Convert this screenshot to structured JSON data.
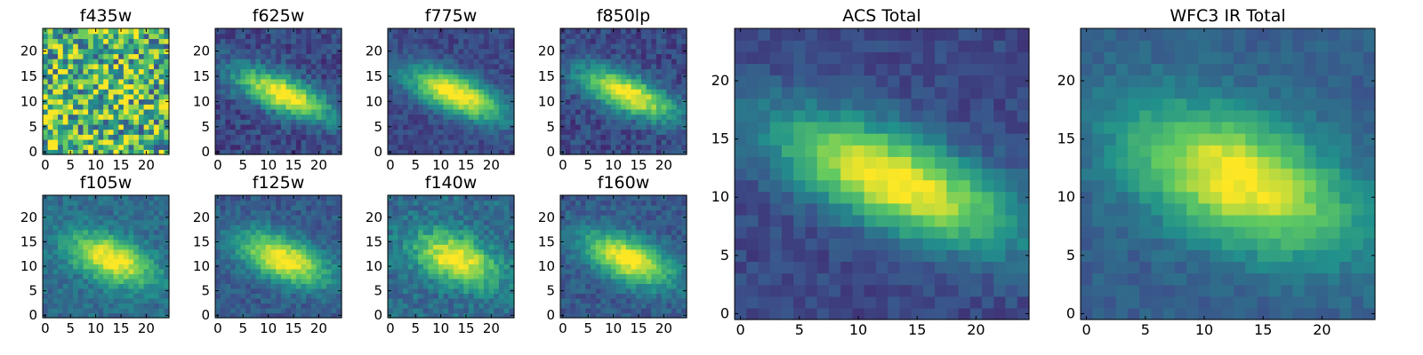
{
  "figure": {
    "panels": [
      {
        "key": "f435w",
        "title": "f435w"
      },
      {
        "key": "f625w",
        "title": "f625w"
      },
      {
        "key": "f775w",
        "title": "f775w"
      },
      {
        "key": "f850lp",
        "title": "f850lp"
      },
      {
        "key": "f105w",
        "title": "f105w"
      },
      {
        "key": "f125w",
        "title": "f125w"
      },
      {
        "key": "f140w",
        "title": "f140w"
      },
      {
        "key": "f160w",
        "title": "f160w"
      },
      {
        "key": "acs_total",
        "title": "ACS Total"
      },
      {
        "key": "wfc3_total",
        "title": "WFC3 IR Total"
      }
    ]
  },
  "chart_data": {
    "type": "heatmap",
    "colormap": "viridis",
    "colors": [
      "#440154",
      "#3b528b",
      "#21918c",
      "#5ec962",
      "#fde725"
    ],
    "grid": false,
    "image_size": [
      25,
      25
    ],
    "xlim": [
      -0.5,
      24.5
    ],
    "ylim": [
      -0.5,
      24.5
    ],
    "small_panel_ticks": {
      "x": [
        0,
        5,
        10,
        15,
        20
      ],
      "y": [
        0,
        5,
        10,
        15,
        20
      ]
    },
    "large_panel_ticks": {
      "x": [
        0,
        5,
        10,
        15,
        20
      ],
      "y": [
        0,
        5,
        10,
        15,
        20
      ]
    },
    "source_center": {
      "x": 13,
      "y": 11.5
    },
    "panels": [
      {
        "title": "f435w",
        "source_visible": false
      },
      {
        "title": "f625w",
        "source_visible": true
      },
      {
        "title": "f775w",
        "source_visible": true
      },
      {
        "title": "f850lp",
        "source_visible": true
      },
      {
        "title": "f105w",
        "source_visible": true
      },
      {
        "title": "f125w",
        "source_visible": true
      },
      {
        "title": "f140w",
        "source_visible": true
      },
      {
        "title": "f160w",
        "source_visible": true
      },
      {
        "title": "ACS Total",
        "source_visible": true
      },
      {
        "title": "WFC3 IR Total",
        "source_visible": true
      }
    ]
  }
}
